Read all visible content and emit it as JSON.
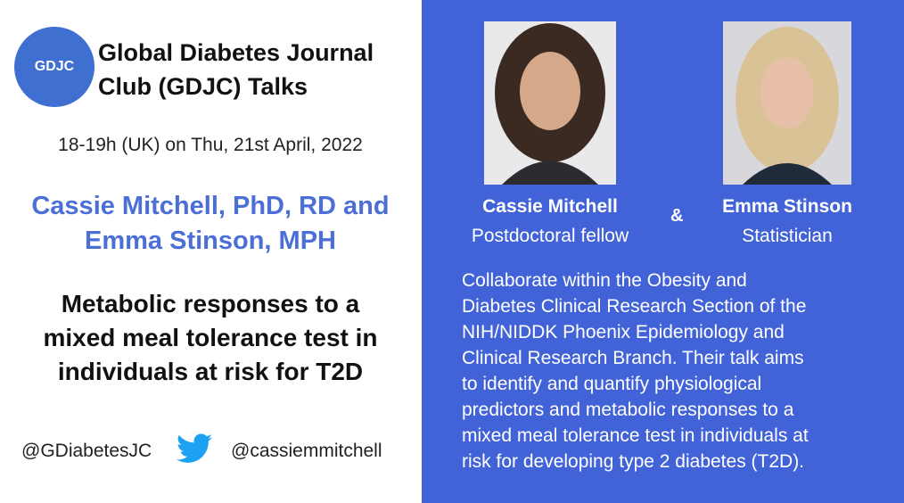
{
  "header": {
    "logo": "GDJC",
    "title_lines": [
      "Global Diabetes Journal",
      "Club (GDJC) Talks"
    ]
  },
  "date": "18-19h (UK) on Thu, 21st April, 2022",
  "speakers_lines": [
    "Cassie Mitchell, PhD, RD and",
    "Emma Stinson, MPH"
  ],
  "talk_title_lines": [
    "Metabolic responses to a",
    "mixed meal tolerance test in",
    "individuals at risk for T2D"
  ],
  "footer": {
    "handle_1": "@GDiabetesJC",
    "handle_2": "@cassiemmitchell"
  },
  "profiles": [
    {
      "name": "Cassie Mitchell",
      "role": "Postdoctoral fellow"
    },
    {
      "name": "Emma Stinson",
      "role": "Statistician"
    }
  ],
  "ampersand": "&",
  "description_lines": [
    "Collaborate within the Obesity and",
    "Diabetes Clinical Research Section of the",
    "NIH/NIDDK Phoenix Epidemiology and",
    "Clinical Research Branch. Their talk aims",
    "to identify and quantify physiological",
    "predictors and metabolic responses to a",
    "mixed meal tolerance test in individuals at",
    "risk for developing type 2 diabetes (T2D)."
  ]
}
